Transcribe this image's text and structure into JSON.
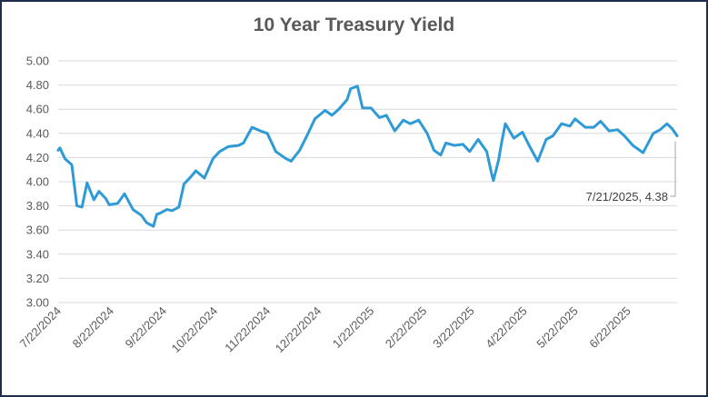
{
  "chart_data": {
    "type": "line",
    "title": "10 Year Treasury Yield",
    "xlabel": "",
    "ylabel": "",
    "ylim": [
      3.0,
      5.0
    ],
    "yticks": [
      "5.00",
      "4.80",
      "4.60",
      "4.40",
      "4.20",
      "4.00",
      "3.80",
      "3.60",
      "3.40",
      "3.20",
      "3.00"
    ],
    "xticks": [
      "7/22/2024",
      "8/22/2024",
      "9/22/2024",
      "10/22/2024",
      "11/22/2024",
      "12/22/2024",
      "1/22/2025",
      "2/22/2025",
      "3/22/2025",
      "4/22/2025",
      "5/22/2025",
      "6/22/2025"
    ],
    "grid": true,
    "line_color": "#2e9bd6",
    "series": [
      {
        "name": "",
        "x": [
          "7/22/2024",
          "7/23/2024",
          "7/24/2024",
          "7/26/2024",
          "7/30/2024",
          "8/2/2024",
          "8/5/2024",
          "8/8/2024",
          "8/12/2024",
          "8/15/2024",
          "8/19/2024",
          "8/21/2024",
          "8/26/2024",
          "8/30/2024",
          "9/4/2024",
          "9/9/2024",
          "9/12/2024",
          "9/16/2024",
          "9/18/2024",
          "9/20/2024",
          "9/24/2024",
          "9/27/2024",
          "10/1/2024",
          "10/4/2024",
          "10/8/2024",
          "10/11/2024",
          "10/16/2024",
          "10/21/2024",
          "10/25/2024",
          "10/30/2024",
          "11/5/2024",
          "11/8/2024",
          "11/13/2024",
          "11/18/2024",
          "11/22/2024",
          "11/27/2024",
          "12/3/2024",
          "12/6/2024",
          "12/11/2024",
          "12/16/2024",
          "12/20/2024",
          "12/26/2024",
          "12/30/2024",
          "1/3/2025",
          "1/8/2025",
          "1/10/2025",
          "1/14/2025",
          "1/17/2025",
          "1/22/2025",
          "1/27/2025",
          "1/31/2025",
          "2/5/2025",
          "2/10/2025",
          "2/14/2025",
          "2/19/2025",
          "2/24/2025",
          "2/28/2025",
          "3/4/2025",
          "3/7/2025",
          "3/12/2025",
          "3/17/2025",
          "3/21/2025",
          "3/26/2025",
          "3/31/2025",
          "4/3/2025",
          "4/4/2025",
          "4/7/2025",
          "4/9/2025",
          "4/11/2025",
          "4/16/2025",
          "4/21/2025",
          "4/25/2025",
          "4/30/2025",
          "5/5/2025",
          "5/9/2025",
          "5/14/2025",
          "5/19/2025",
          "5/22/2025",
          "5/28/2025",
          "6/2/2025",
          "6/6/2025",
          "6/11/2025",
          "6/16/2025",
          "6/20/2025",
          "6/25/2025",
          "7/1/2025",
          "7/7/2025",
          "7/11/2025",
          "7/15/2025",
          "7/18/2025",
          "7/21/2025"
        ],
        "values": [
          4.26,
          4.28,
          4.25,
          4.19,
          4.14,
          3.8,
          3.79,
          3.99,
          3.85,
          3.92,
          3.86,
          3.81,
          3.82,
          3.9,
          3.77,
          3.72,
          3.66,
          3.63,
          3.73,
          3.74,
          3.77,
          3.76,
          3.79,
          3.98,
          4.04,
          4.09,
          4.03,
          4.19,
          4.25,
          4.29,
          4.3,
          4.32,
          4.45,
          4.42,
          4.4,
          4.25,
          4.19,
          4.17,
          4.26,
          4.4,
          4.52,
          4.59,
          4.55,
          4.6,
          4.68,
          4.77,
          4.79,
          4.61,
          4.61,
          4.53,
          4.55,
          4.42,
          4.51,
          4.48,
          4.51,
          4.4,
          4.26,
          4.22,
          4.32,
          4.3,
          4.31,
          4.25,
          4.35,
          4.25,
          4.06,
          4.01,
          4.18,
          4.34,
          4.48,
          4.36,
          4.41,
          4.3,
          4.17,
          4.35,
          4.38,
          4.48,
          4.46,
          4.52,
          4.45,
          4.45,
          4.5,
          4.42,
          4.43,
          4.38,
          4.3,
          4.24,
          4.4,
          4.43,
          4.48,
          4.44,
          4.38
        ]
      }
    ],
    "annotation": "7/21/2025,  4.38"
  }
}
